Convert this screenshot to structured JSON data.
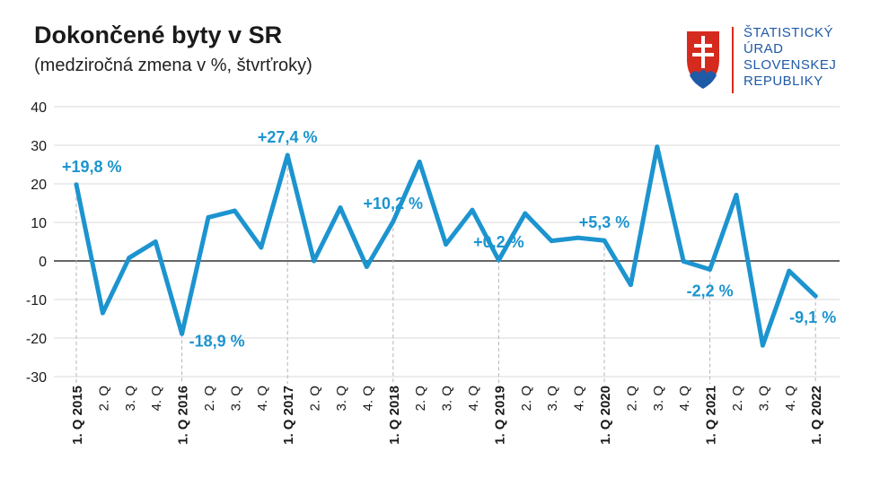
{
  "title": "Dokončené byty v SR",
  "subtitle": "(medziročná zmena v %, štvrťroky)",
  "logo": {
    "lines": [
      "ŠTATISTICKÝ",
      "ÚRAD",
      "SLOVENSKEJ",
      "REPUBLIKY"
    ],
    "colors": {
      "red": "#d52b1e",
      "blue": "#1f5aa6",
      "white": "#ffffff"
    }
  },
  "colors": {
    "line": "#1c94cf",
    "grid": "#d9d9d9",
    "zero": "#333333",
    "text": "#1a1a1a"
  },
  "chart_data": {
    "type": "line",
    "title": "Dokončené byty v SR",
    "subtitle": "(medziročná zmena v %, štvrťroky)",
    "ylim": [
      -30,
      40
    ],
    "yticks": [
      40,
      30,
      20,
      10,
      0,
      -10,
      -20,
      -30
    ],
    "grid": true,
    "categories": [
      "1. Q 2015",
      "2. Q",
      "3. Q",
      "4. Q",
      "1. Q 2016",
      "2. Q",
      "3. Q",
      "4. Q",
      "1. Q 2017",
      "2. Q",
      "3. Q",
      "4. Q",
      "1. Q 2018",
      "2. Q",
      "3. Q",
      "4. Q",
      "1. Q 2019",
      "2. Q",
      "3. Q",
      "4. Q",
      "1. Q 2020",
      "2. Q",
      "3. Q",
      "4. Q",
      "1. Q 2021",
      "2. Q",
      "3. Q",
      "4. Q",
      "1. Q 2022"
    ],
    "bold_categories": [
      0,
      4,
      8,
      12,
      16,
      20,
      24,
      28
    ],
    "values": [
      19.8,
      -13.5,
      0.8,
      5.0,
      -18.9,
      11.3,
      13.0,
      3.5,
      27.4,
      0.0,
      13.8,
      -1.5,
      10.2,
      25.7,
      4.3,
      13.2,
      0.2,
      12.3,
      5.2,
      6.0,
      5.3,
      -6.2,
      29.6,
      -0.1,
      -2.2,
      17.1,
      -21.9,
      -2.6,
      -9.1
    ],
    "annotations": [
      {
        "index": 0,
        "text": "+19,8 %",
        "pos": "above"
      },
      {
        "index": 4,
        "text": "-18,9 %",
        "pos": "right"
      },
      {
        "index": 8,
        "text": "+27,4 %",
        "pos": "above"
      },
      {
        "index": 12,
        "text": "+10,2 %",
        "pos": "above"
      },
      {
        "index": 16,
        "text": "+0,2 %",
        "pos": "above"
      },
      {
        "index": 20,
        "text": "+5,3 %",
        "pos": "above"
      },
      {
        "index": 24,
        "text": "-2,2 %",
        "pos": "below"
      },
      {
        "index": 28,
        "text": "-9,1 %",
        "pos": "below"
      }
    ]
  }
}
